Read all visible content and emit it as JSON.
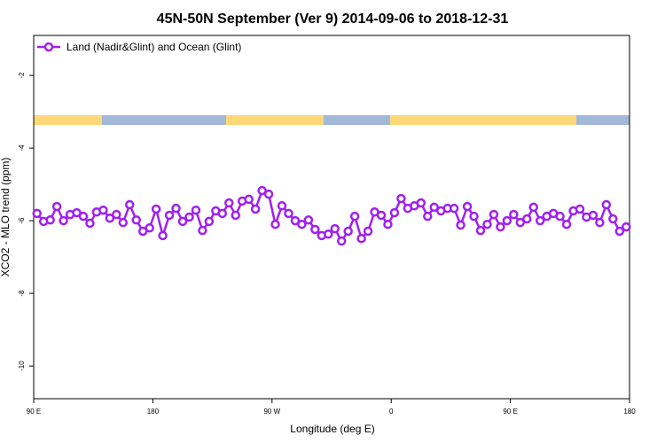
{
  "chart_data": {
    "type": "line",
    "title": "45N-50N September (Ver 9)   2014-09-06 to 2018-12-31",
    "x_label": "Longitude (deg E)",
    "y_label": "XCO2 - MLO trend (ppm)",
    "legend_position": "upper left",
    "xlim": [
      90,
      540
    ],
    "xticks": [
      {
        "value": 90,
        "label": "90 E"
      },
      180,
      {
        "value": 270,
        "label": "90 W"
      },
      {
        "value": 360,
        "label": "0"
      },
      {
        "value": 450,
        "label": "90 E"
      },
      {
        "value": 540,
        "label": "180"
      }
    ],
    "ylim": [
      -10.9,
      -0.9
    ],
    "yticks": [
      -2,
      -4,
      -6,
      -8,
      -10
    ],
    "x": [
      92.5,
      97.5,
      102.5,
      107.5,
      112.5,
      117.5,
      122.5,
      127.5,
      132.5,
      137.5,
      142.5,
      147.5,
      152.5,
      157.5,
      162.5,
      167.5,
      172.5,
      177.5,
      182.5,
      187.5,
      192.5,
      197.5,
      202.5,
      207.5,
      212.5,
      217.5,
      222.5,
      227.5,
      232.5,
      237.5,
      242.5,
      247.5,
      252.5,
      257.5,
      262.5,
      267.5,
      272.5,
      277.5,
      282.5,
      287.5,
      292.5,
      297.5,
      302.5,
      307.5,
      312.5,
      317.5,
      322.5,
      327.5,
      332.5,
      337.5,
      342.5,
      347.5,
      352.5,
      357.5,
      362.5,
      367.5,
      372.5,
      377.5,
      382.5,
      387.5,
      392.5,
      397.5,
      402.5,
      407.5,
      412.5,
      417.5,
      422.5,
      427.5,
      432.5,
      437.5,
      442.5,
      447.5,
      452.5,
      457.5,
      462.5,
      467.5,
      472.5,
      477.5,
      482.5,
      487.5,
      492.5,
      497.5,
      502.5,
      507.5,
      512.5,
      517.5,
      522.5,
      527.5,
      532.5,
      537.5
    ],
    "series": [
      {
        "name": "Land (Nadir&Glint) and Ocean (Glint)",
        "color": "#a020f0",
        "values": [
          -5.8,
          -6.02,
          -5.98,
          -5.61,
          -6.0,
          -5.83,
          -5.78,
          -5.88,
          -6.07,
          -5.76,
          -5.71,
          -5.93,
          -5.83,
          -6.05,
          -5.56,
          -5.98,
          -6.29,
          -6.2,
          -5.68,
          -6.41,
          -5.85,
          -5.66,
          -6.02,
          -5.9,
          -5.71,
          -6.27,
          -6.02,
          -5.73,
          -5.8,
          -5.51,
          -5.85,
          -5.46,
          -5.41,
          -5.68,
          -5.17,
          -5.27,
          -6.1,
          -5.59,
          -5.8,
          -6.0,
          -6.1,
          -5.98,
          -6.24,
          -6.41,
          -6.37,
          -6.22,
          -6.56,
          -6.29,
          -5.88,
          -6.49,
          -6.29,
          -5.76,
          -5.85,
          -6.1,
          -5.78,
          -5.39,
          -5.66,
          -5.59,
          -5.51,
          -5.88,
          -5.63,
          -5.73,
          -5.66,
          -5.66,
          -6.12,
          -5.61,
          -5.88,
          -6.27,
          -6.1,
          -5.83,
          -6.17,
          -6.0,
          -5.83,
          -6.05,
          -5.95,
          -5.63,
          -6.0,
          -5.88,
          -5.8,
          -5.88,
          -6.1,
          -5.73,
          -5.68,
          -5.9,
          -5.85,
          -6.05,
          -5.56,
          -5.95,
          -6.29,
          -6.17
        ]
      }
    ]
  }
}
